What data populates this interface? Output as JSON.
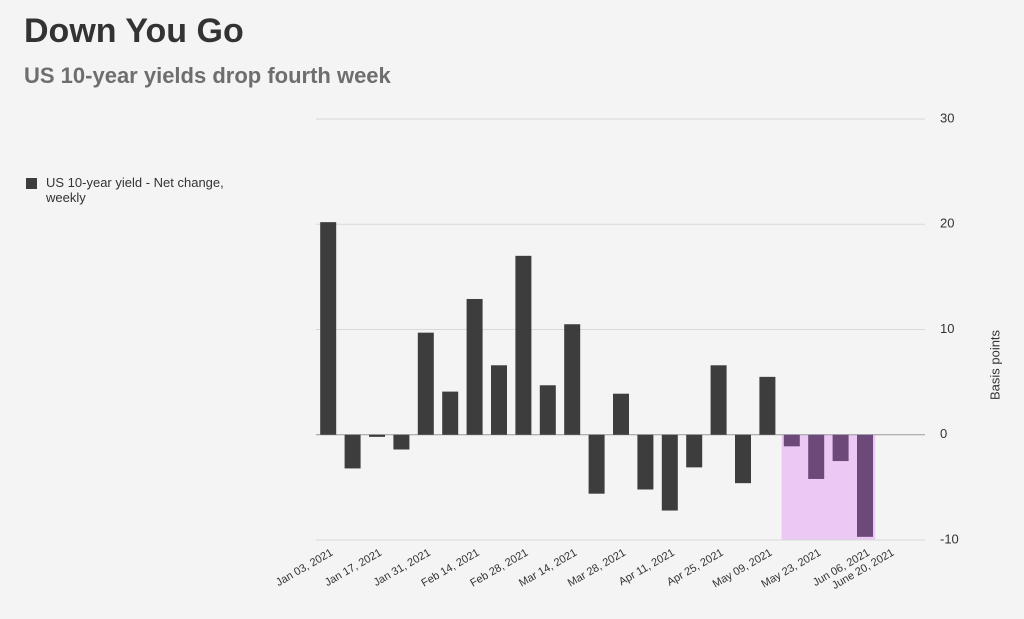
{
  "chart_data": {
    "type": "bar",
    "title": "Down You Go",
    "subtitle": "US 10-year yields drop fourth week",
    "y_axis_label": "Basis points",
    "categories": [
      "Jan 03, 2021",
      null,
      "Jan 17, 2021",
      null,
      "Jan 31, 2021",
      null,
      "Feb 14, 2021",
      null,
      "Feb 28, 2021",
      null,
      "Mar 14, 2021",
      null,
      "Mar 28, 2021",
      null,
      "Apr 11, 2021",
      null,
      "Apr 25, 2021",
      null,
      "May 09, 2021",
      null,
      "May 23, 2021",
      null,
      "Jun 06, 2021",
      "June 20, 2021"
    ],
    "series": [
      {
        "name": "US 10-year yield - Net change, weekly",
        "color": "#3d3d3d",
        "highlight_color": "#6b4a7a",
        "values": [
          20.2,
          -3.2,
          -0.2,
          -1.4,
          9.7,
          4.1,
          12.9,
          6.6,
          17.0,
          4.7,
          10.5,
          -5.6,
          3.9,
          -5.2,
          -7.2,
          -3.1,
          6.6,
          -4.6,
          5.5,
          -1.1,
          -4.2,
          -2.5,
          -9.7,
          null
        ]
      }
    ],
    "highlight_fill": "#ecc8f5",
    "ylim": [
      -10,
      30
    ],
    "yticks": [
      -10,
      0,
      10,
      20,
      30
    ],
    "grid": true,
    "legend": "left"
  }
}
